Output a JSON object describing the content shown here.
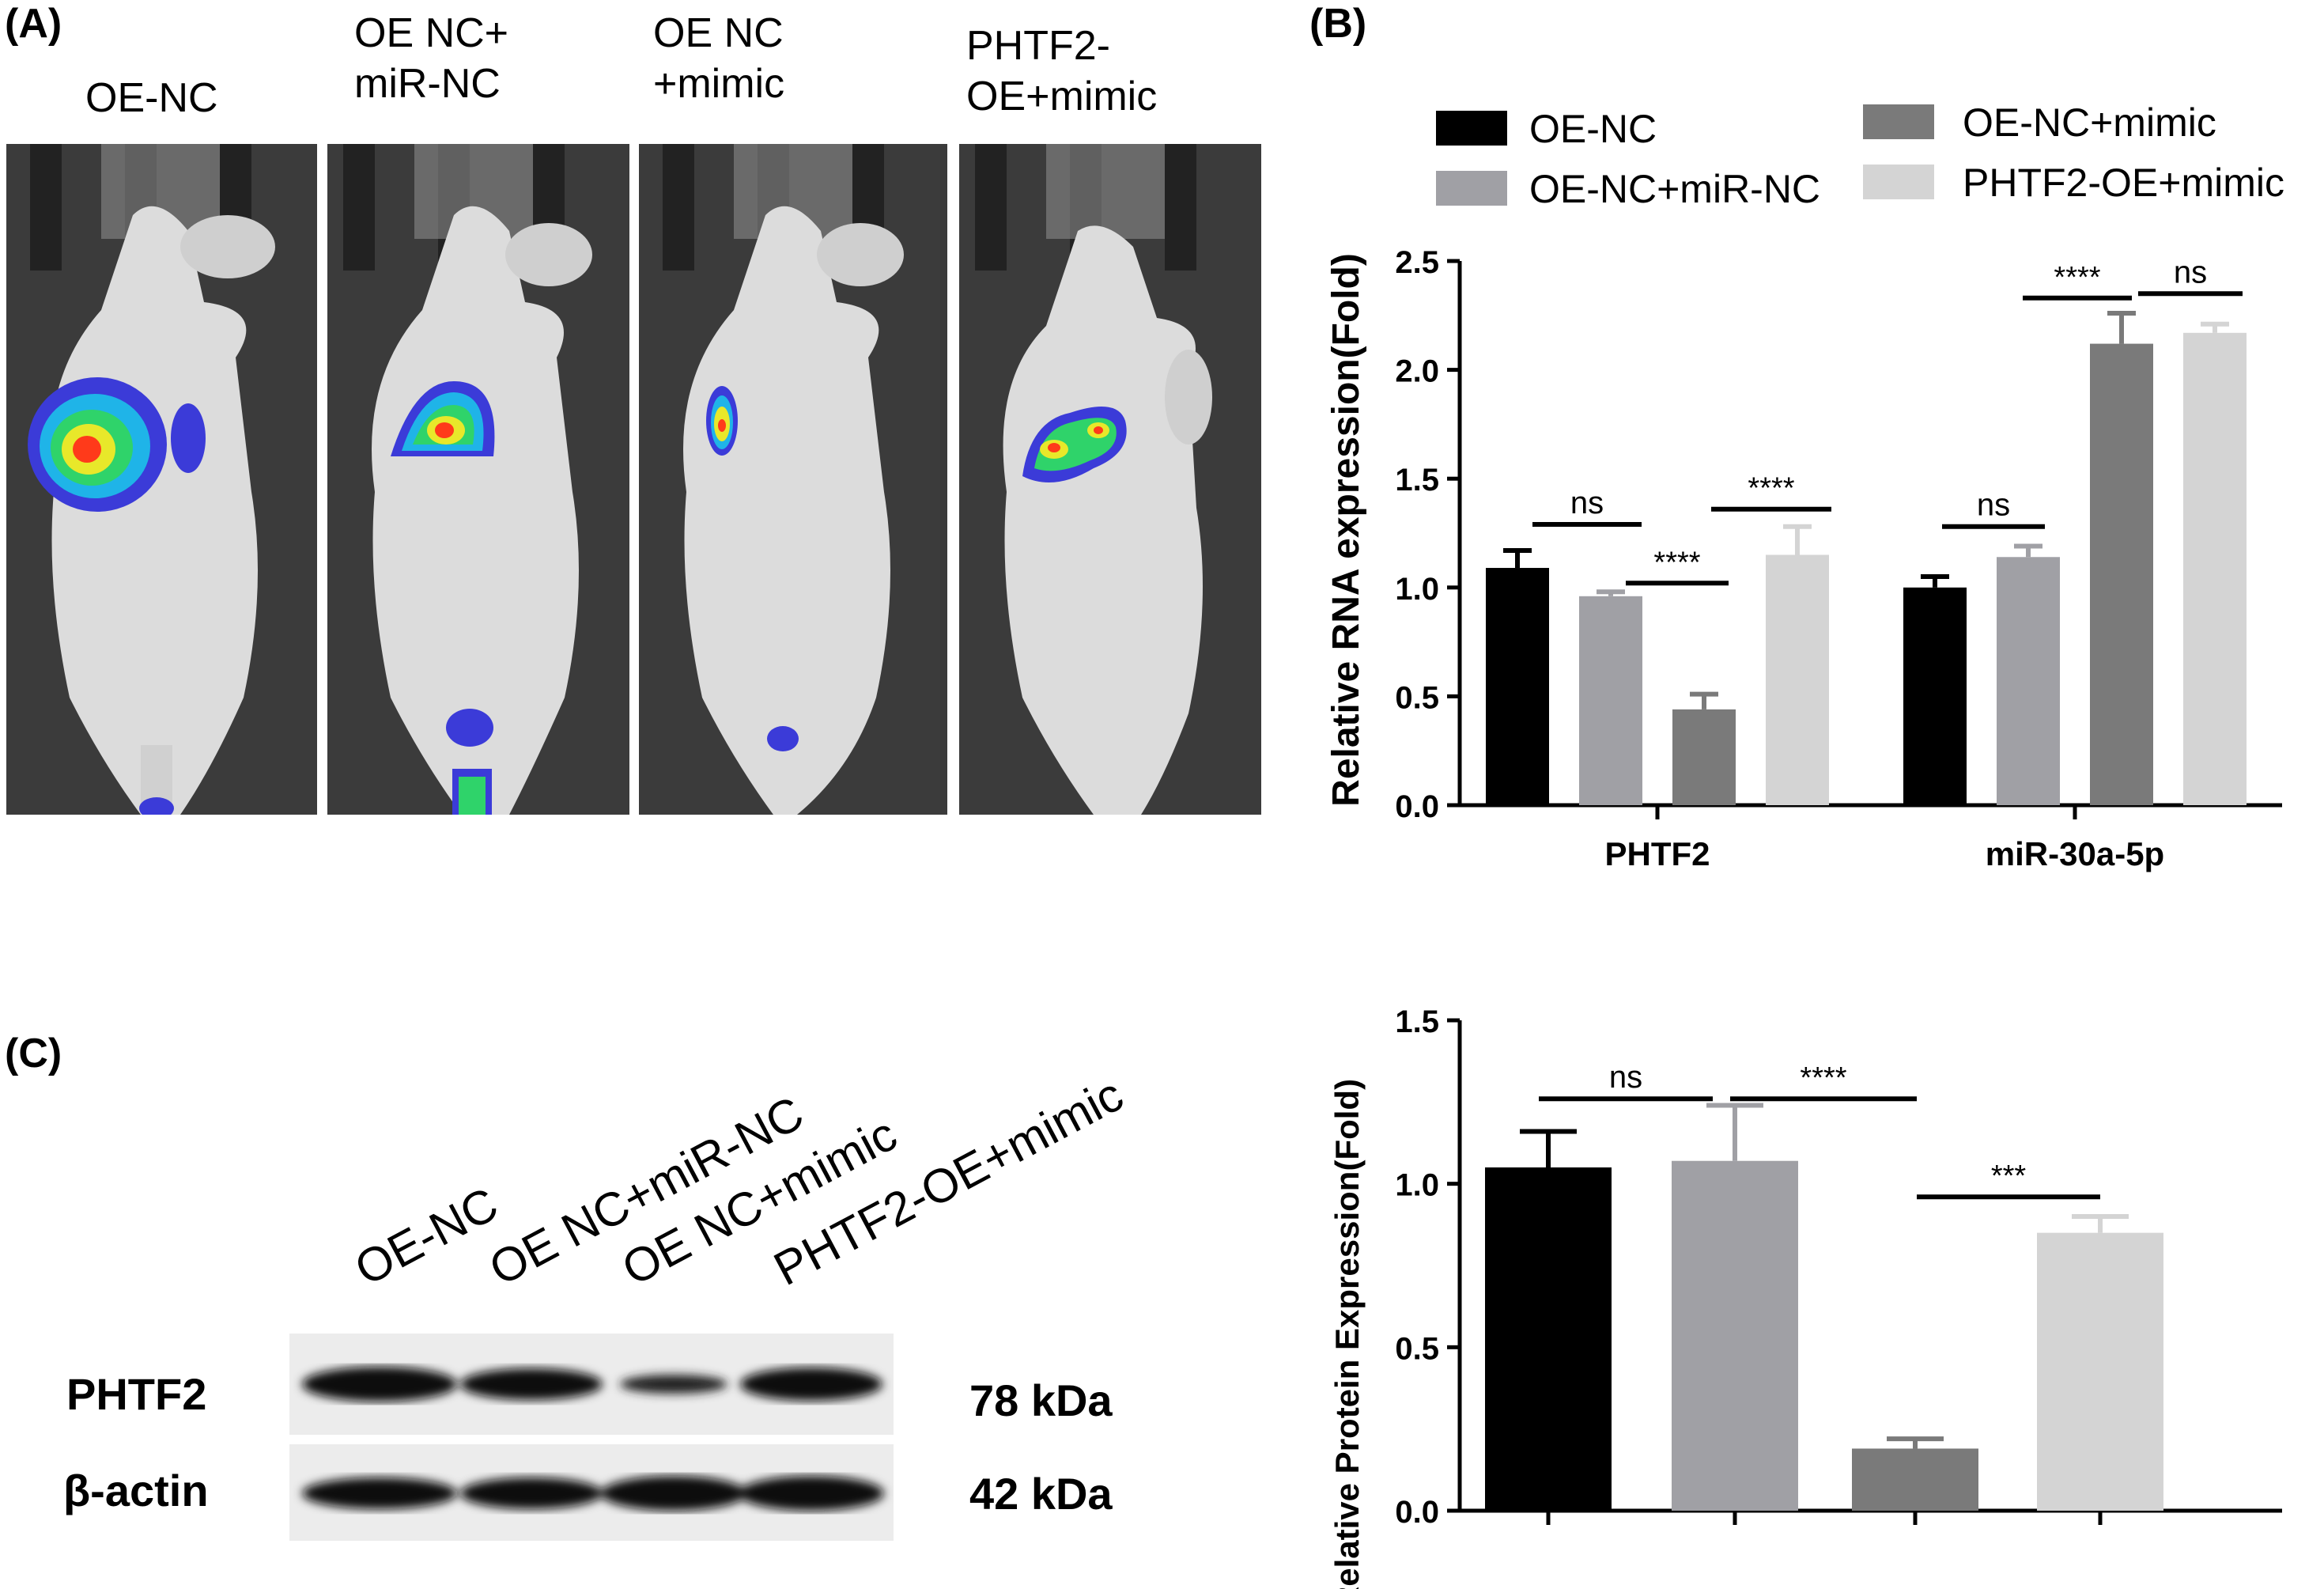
{
  "panels": {
    "a_label": "(A)",
    "b_label": "(B)",
    "c_label": "(C)"
  },
  "imaging": {
    "groups": [
      {
        "line1": "OE-NC",
        "line2": ""
      },
      {
        "line1": "OE NC+",
        "line2": "miR-NC"
      },
      {
        "line1": "OE NC",
        "line2": "+mimic"
      },
      {
        "line1": "PHTF2-",
        "line2": "OE+mimic"
      }
    ],
    "signal_colors": [
      "#3b3bd8",
      "#1fb4e8",
      "#2fd36a",
      "#e8e82a",
      "#ff3a1a"
    ]
  },
  "western": {
    "lanes": [
      "OE-NC",
      "OE NC+miR-NC",
      "OE NC+mimic",
      "PHTF2-OE+mimic"
    ],
    "bands": [
      {
        "name": "PHTF2",
        "size": "78 kDa",
        "intensities": [
          1.0,
          0.95,
          0.5,
          0.95
        ]
      },
      {
        "name": "β-actin",
        "size": "42 kDa",
        "intensities": [
          0.95,
          0.95,
          0.95,
          0.95
        ]
      }
    ]
  },
  "chart_data": [
    {
      "type": "bar",
      "ylabel": "Relative RNA expression(Fold)",
      "categories": [
        "PHTF2",
        "miR-30a-5p"
      ],
      "ylim": [
        0,
        2.5
      ],
      "yticks": [
        "0.0",
        "0.5",
        "1.0",
        "1.5",
        "2.0",
        "2.5"
      ],
      "series": [
        {
          "name": "OE-NC",
          "color": "#000000",
          "values": [
            1.09,
            1.0
          ],
          "errors": [
            0.08,
            0.05
          ]
        },
        {
          "name": "OE-NC+miR-NC",
          "color": "#a0a0a5",
          "values": [
            0.96,
            1.14
          ],
          "errors": [
            0.02,
            0.05
          ]
        },
        {
          "name": "OE-NC+mimic",
          "color": "#7a7a7a",
          "values": [
            0.44,
            2.12
          ],
          "errors": [
            0.07,
            0.14
          ]
        },
        {
          "name": "PHTF2-OE+mimic",
          "color": "#d4d4d4",
          "values": [
            1.15,
            2.17
          ],
          "errors": [
            0.13,
            0.04
          ]
        }
      ],
      "legend": [
        "OE-NC",
        "OE-NC+miR-NC",
        "OE-NC+mimic",
        "PHTF2-OE+mimic"
      ],
      "annotations": [
        "ns",
        "****",
        "****",
        "ns",
        "****",
        "ns"
      ]
    },
    {
      "type": "bar",
      "ylabel": "Relative Protein Expression(Fold)",
      "categories": [
        "OE-NC",
        "OE NC+miR-NC",
        "OE NC+mimic",
        "PHTF2-OE+mimic"
      ],
      "ylim": [
        0,
        1.5
      ],
      "yticks": [
        "0.0",
        "0.5",
        "1.0",
        "1.5"
      ],
      "values": [
        1.05,
        1.07,
        0.19,
        0.85
      ],
      "errors": [
        0.11,
        0.17,
        0.03,
        0.05
      ],
      "colors": [
        "#000000",
        "#a0a0a5",
        "#7a7a7a",
        "#d4d4d4"
      ],
      "annotations": [
        "ns",
        "****",
        "***"
      ]
    }
  ]
}
